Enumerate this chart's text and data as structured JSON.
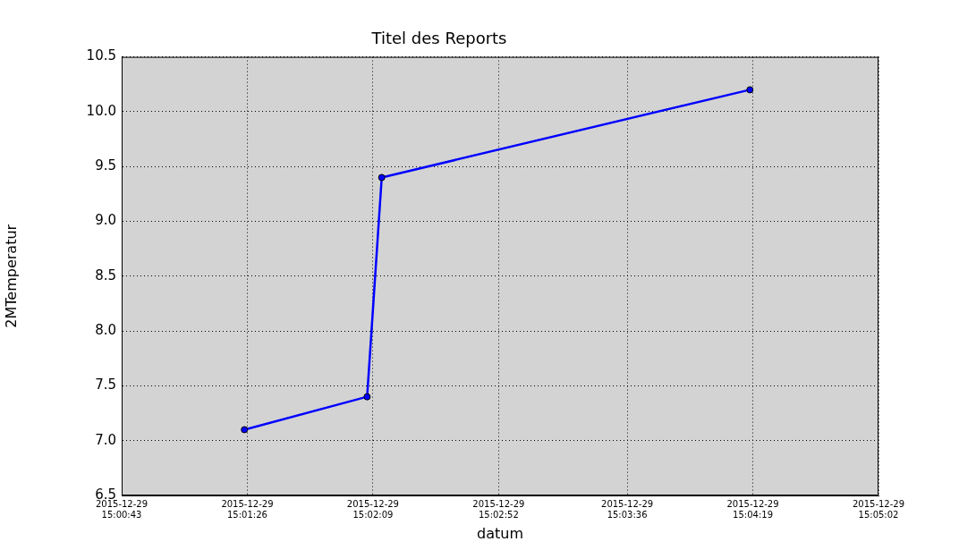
{
  "chart_data": {
    "type": "line",
    "title": "Titel des Reports",
    "xlabel": "datum",
    "ylabel": "2MTemperatur",
    "x": [
      "2015-12-29T15:01:25",
      "2015-12-29T15:02:07",
      "2015-12-29T15:02:12",
      "2015-12-29T15:04:18"
    ],
    "series": [
      {
        "color": "#0000ff",
        "values": [
          7.1,
          7.4,
          9.4,
          10.2
        ]
      }
    ],
    "xlim": [
      "2015-12-29T15:00:43",
      "2015-12-29T15:05:02"
    ],
    "xticks": [
      {
        "value": "2015-12-29T15:00:43",
        "label": "2015-12-29\n15:00:43"
      },
      {
        "value": "2015-12-29T15:01:26",
        "label": "2015-12-29\n15:01:26"
      },
      {
        "value": "2015-12-29T15:02:09",
        "label": "2015-12-29\n15:02:09"
      },
      {
        "value": "2015-12-29T15:02:52",
        "label": "2015-12-29\n15:02:52"
      },
      {
        "value": "2015-12-29T15:03:36",
        "label": "2015-12-29\n15:03:36"
      },
      {
        "value": "2015-12-29T15:04:19",
        "label": "2015-12-29\n15:04:19"
      },
      {
        "value": "2015-12-29T15:05:02",
        "label": "2015-12-29\n15:05:02"
      }
    ],
    "ylim": [
      6.5,
      10.5
    ],
    "yticks": [
      6.5,
      {
        "value": 7,
        "label": "7.0"
      },
      7.5,
      {
        "value": 8,
        "label": "8.0"
      },
      8.5,
      {
        "value": 9,
        "label": "9.0"
      },
      9.5,
      {
        "value": 10,
        "label": "10.0"
      },
      10.5
    ],
    "grid": true,
    "legend": false,
    "marker": "circle",
    "line_style": "solid"
  }
}
